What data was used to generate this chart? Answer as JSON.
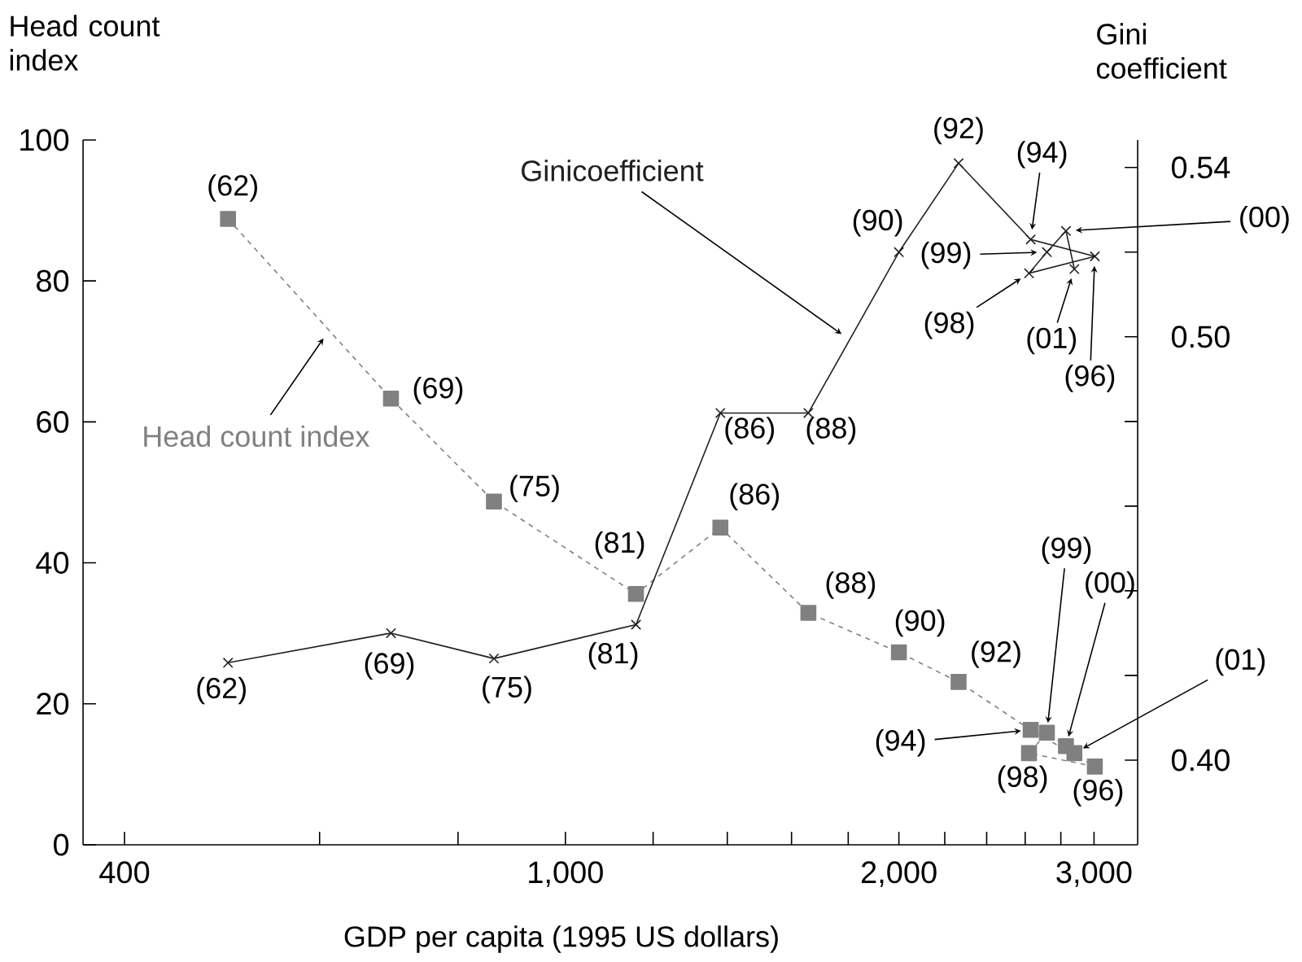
{
  "chart_data": {
    "type": "line",
    "xlabel": "GDP per capita (1995 US dollars)",
    "ylabel": "Head count index",
    "y2label": "Gini coefficient",
    "log": "x",
    "x": [
      496,
      696,
      862,
      1158,
      1380,
      1657,
      2000,
      2264,
      2630,
      3005,
      2621,
      2720,
      2830,
      2880
    ],
    "xlim": [
      367,
      3285
    ],
    "xticks": [
      {
        "value": 400,
        "label": "400"
      },
      {
        "value": 600,
        "label": null
      },
      {
        "value": 800,
        "label": null
      },
      {
        "value": 1000,
        "label": "1,000"
      },
      {
        "value": 1200,
        "label": null
      },
      {
        "value": 1400,
        "label": null
      },
      {
        "value": 1600,
        "label": null
      },
      {
        "value": 1800,
        "label": null
      },
      {
        "value": 2000,
        "label": "2,000"
      },
      {
        "value": 2200,
        "label": null
      },
      {
        "value": 2400,
        "label": null
      },
      {
        "value": 2600,
        "label": null
      },
      {
        "value": 2800,
        "label": null
      },
      {
        "value": 3000,
        "label": "3,000"
      }
    ],
    "ylim": [
      0,
      100
    ],
    "yticks": [
      0,
      20,
      40,
      60,
      80,
      100
    ],
    "y2lim": [
      0.38,
      0.5465
    ],
    "y2ticks": [
      {
        "value": 0.4,
        "label": "0.40"
      },
      {
        "value": 0.42,
        "label": null
      },
      {
        "value": 0.44,
        "label": null
      },
      {
        "value": 0.46,
        "label": null
      },
      {
        "value": 0.48,
        "label": null
      },
      {
        "value": 0.5,
        "label": "0.50"
      },
      {
        "value": 0.52,
        "label": null
      },
      {
        "value": 0.54,
        "label": "0.54"
      }
    ],
    "series": [
      {
        "name": "Head count index",
        "color": "#808080",
        "marker": "square",
        "line_style": "dashed",
        "values": [
          88.8,
          63.3,
          48.7,
          35.6,
          45.0,
          32.9,
          27.3,
          23.1,
          16.3,
          11.1,
          13.0,
          15.9,
          14.0,
          13.0
        ]
      },
      {
        "name": "Ginicoefficient",
        "color": "#231f20",
        "marker": "cross",
        "line_style": "solid",
        "axis": "y2",
        "values": [
          0.423,
          0.43,
          0.424,
          0.432,
          0.482,
          0.482,
          0.52,
          0.541,
          0.523,
          0.519,
          0.515,
          0.52,
          0.525,
          0.516
        ]
      }
    ],
    "annotations": [
      {
        "text": "(62)",
        "x": 496,
        "y": 88.8
      },
      {
        "text": "(69)",
        "x": 696,
        "y": 63.3
      },
      {
        "text": "(75)",
        "x": 862,
        "y": 48.7
      },
      {
        "text": "(81)",
        "x": 1158,
        "y": 35.6
      },
      {
        "text": "(86)",
        "x": 1380,
        "y": 45.0
      },
      {
        "text": "(88)",
        "x": 1657,
        "y": 32.9
      },
      {
        "text": "(90)",
        "x": 2000,
        "y": 27.3
      },
      {
        "text": "(92)",
        "x": 2264,
        "y": 23.1
      },
      {
        "text": "(94)",
        "x": 2630,
        "y": 16.3
      },
      {
        "text": "(96)",
        "x": 3005,
        "y": 11.1
      },
      {
        "text": "(98)",
        "x": 2621,
        "y": 13.0
      },
      {
        "text": "(99)",
        "x": 2720,
        "y": 15.9
      },
      {
        "text": "(00)",
        "x": 2830,
        "y": 14.0
      },
      {
        "text": "(01)",
        "x": 2880,
        "y": 13.0
      },
      {
        "text": "(62)",
        "x": 496,
        "y": 25.8
      },
      {
        "text": "(69)",
        "x": 696,
        "y": 30.0
      },
      {
        "text": "(75)",
        "x": 862,
        "y": 26.4
      },
      {
        "text": "(81)",
        "x": 1158,
        "y": 31.2
      },
      {
        "text": "(86)",
        "x": 1380,
        "y": 61.3
      },
      {
        "text": "(88)",
        "x": 1657,
        "y": 61.3
      },
      {
        "text": "(90)",
        "x": 2000,
        "y": 84.1
      },
      {
        "text": "(92)",
        "x": 2264,
        "y": 96.7
      },
      {
        "text": "(94)",
        "x": 2630,
        "y": 85.9
      },
      {
        "text": "(96)",
        "x": 3005,
        "y": 83.5
      },
      {
        "text": "(98)",
        "x": 2621,
        "y": 81.1
      },
      {
        "text": "(99)",
        "x": 2720,
        "y": 84.1
      },
      {
        "text": "(00)",
        "x": 2830,
        "y": 87.1
      },
      {
        "text": "(01)",
        "x": 2880,
        "y": 81.7
      }
    ]
  }
}
